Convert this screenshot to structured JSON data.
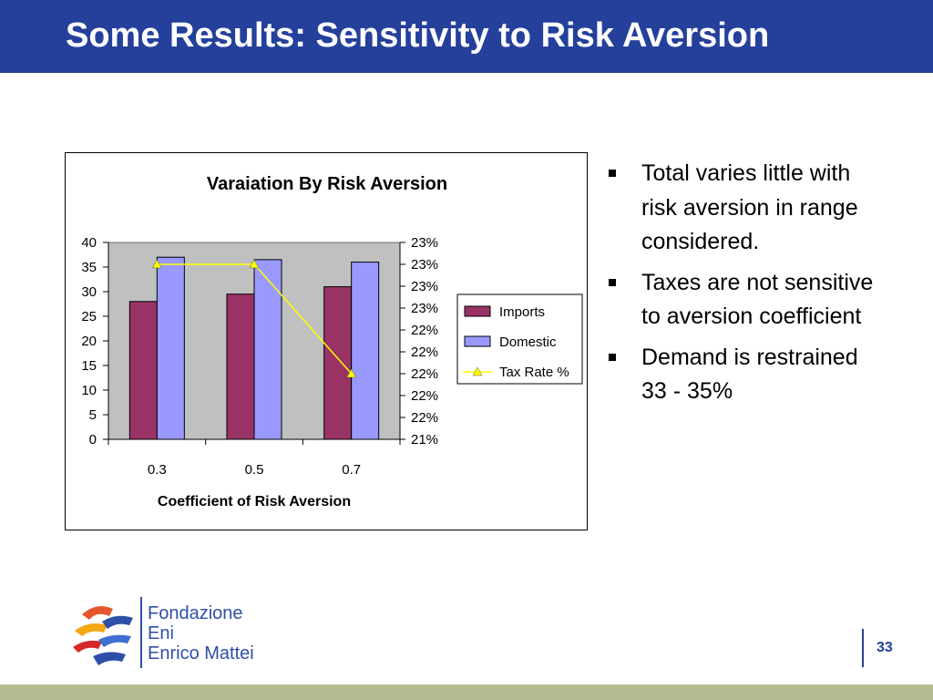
{
  "slide": {
    "title": "Some Results: Sensitivity to Risk Aversion",
    "page_number": "33"
  },
  "bullets": [
    "Total varies little with risk aversion in range considered.",
    "Taxes are not sensitive to aversion coefficient",
    "Demand is restrained 33 - 35%"
  ],
  "logo": {
    "line1": "Fondazione",
    "line2": "Eni",
    "line3": "Enrico Mattei"
  },
  "colors": {
    "header": "#24409b",
    "imports": "#993366",
    "domestic": "#9999ff",
    "tax_rate": "#ffff00",
    "plot_bg": "#c0c0c0",
    "footer_band": "#b5bb91"
  },
  "chart_data": {
    "type": "bar",
    "title": "Varaiation By Risk Aversion",
    "xlabel": "Coefficient of Risk Aversion",
    "ylabel": "",
    "categories": [
      "0.3",
      "0.5",
      "0.7"
    ],
    "ylim": [
      0,
      40
    ],
    "yticks": [
      "0",
      "5",
      "10",
      "15",
      "20",
      "25",
      "30",
      "35",
      "40"
    ],
    "y2ticks": [
      "21%",
      "22%",
      "22%",
      "22%",
      "22%",
      "22%",
      "23%",
      "23%",
      "23%",
      "23%"
    ],
    "y2lim": [
      0,
      9
    ],
    "series": [
      {
        "name": "Imports",
        "type": "bar",
        "values": [
          28,
          29.5,
          31
        ]
      },
      {
        "name": "Domestic",
        "type": "bar",
        "values": [
          37,
          36.5,
          36
        ]
      },
      {
        "name": "Tax Rate %",
        "type": "line",
        "axis": "secondary",
        "values": [
          8,
          8,
          3
        ]
      }
    ],
    "legend": "right",
    "grid": false
  }
}
